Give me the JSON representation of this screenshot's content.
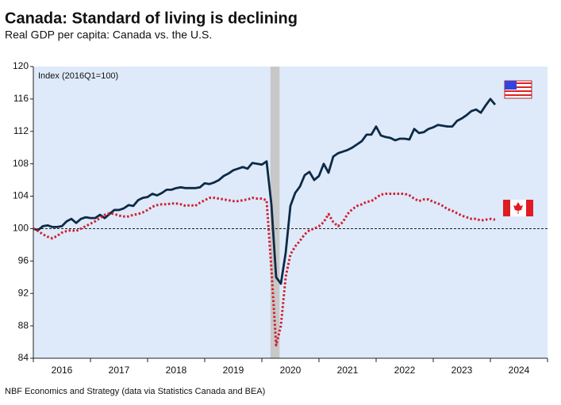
{
  "chart_data": {
    "type": "line",
    "title": "Canada: Standard of living is declining",
    "subtitle": "Real GDP per capita: Canada vs. the U.S.",
    "annotation": "Index (2016Q1=100)",
    "source": "NBF Economics and Strategy (data via Statistics Canada and BEA)",
    "x": [
      2016,
      2016.083,
      2016.167,
      2016.25,
      2016.333,
      2016.417,
      2016.5,
      2016.583,
      2016.667,
      2016.75,
      2016.833,
      2016.917,
      2017,
      2017.083,
      2017.167,
      2017.25,
      2017.333,
      2017.417,
      2017.5,
      2017.583,
      2017.667,
      2017.75,
      2017.833,
      2017.917,
      2018,
      2018.083,
      2018.167,
      2018.25,
      2018.333,
      2018.417,
      2018.5,
      2018.583,
      2018.667,
      2018.75,
      2018.833,
      2018.917,
      2019,
      2019.083,
      2019.167,
      2019.25,
      2019.333,
      2019.417,
      2019.5,
      2019.583,
      2019.667,
      2019.75,
      2019.833,
      2019.917,
      2020,
      2020.083,
      2020.167,
      2020.25,
      2020.333,
      2020.417,
      2020.5,
      2020.583,
      2020.667,
      2020.75,
      2020.833,
      2020.917,
      2021,
      2021.083,
      2021.167,
      2021.25,
      2021.333,
      2021.417,
      2021.5,
      2021.583,
      2021.667,
      2021.75,
      2021.833,
      2021.917,
      2022,
      2022.083,
      2022.167,
      2022.25,
      2022.333,
      2022.417,
      2022.5,
      2022.583,
      2022.667,
      2022.75,
      2022.833,
      2022.917,
      2023,
      2023.083,
      2023.167,
      2023.25,
      2023.333,
      2023.417,
      2023.5,
      2023.583,
      2023.667,
      2023.75,
      2023.833,
      2023.917,
      2024,
      2024.083
    ],
    "series": [
      {
        "color": "#0d2a45",
        "style": "solid",
        "values": [
          100,
          99.8,
          100.3,
          100.4,
          100.2,
          100.2,
          100.3,
          100.9,
          101.2,
          100.7,
          101.2,
          101.4,
          101.3,
          101.3,
          101.7,
          101.3,
          101.8,
          102.3,
          102.3,
          102.5,
          102.9,
          102.8,
          103.5,
          103.8,
          103.9,
          104.3,
          104.1,
          104.4,
          104.8,
          104.8,
          105.0,
          105.1,
          105.0,
          105.0,
          105.0,
          105.1,
          105.6,
          105.5,
          105.7,
          106.0,
          106.5,
          106.8,
          107.2,
          107.4,
          107.6,
          107.4,
          108.1,
          108.0,
          107.9,
          108.3,
          103,
          94,
          93.2,
          97,
          102.8,
          104.4,
          105.2,
          106.6,
          107.0,
          106.0,
          106.5,
          108.0,
          106.9,
          108.9,
          109.3,
          109.5,
          109.7,
          110.0,
          110.4,
          110.8,
          111.6,
          111.6,
          112.6,
          111.5,
          111.3,
          111.2,
          110.9,
          111.1,
          111.1,
          111.0,
          112.3,
          111.8,
          111.9,
          112.3,
          112.5,
          112.8,
          112.7,
          112.6,
          112.6,
          113.3,
          113.6,
          114.0,
          114.5,
          114.7,
          114.3,
          115.2,
          116.0,
          115.3
        ]
      },
      {
        "color": "#d1202f",
        "style": "dotted",
        "values": [
          100,
          99.7,
          99.3,
          99.0,
          98.8,
          99.1,
          99.5,
          99.7,
          99.8,
          99.7,
          100.0,
          100.3,
          100.6,
          100.9,
          101.3,
          101.7,
          101.9,
          101.8,
          101.6,
          101.5,
          101.5,
          101.7,
          101.8,
          102.0,
          102.3,
          102.7,
          102.9,
          103.0,
          103.0,
          103.1,
          103.1,
          103.0,
          102.8,
          102.9,
          102.8,
          103.2,
          103.5,
          103.8,
          103.8,
          103.7,
          103.6,
          103.5,
          103.4,
          103.4,
          103.5,
          103.6,
          103.8,
          103.7,
          103.7,
          103.5,
          95,
          85.6,
          88,
          94,
          96.8,
          97.8,
          98.5,
          99.3,
          99.8,
          100.0,
          100.3,
          100.8,
          101.8,
          100.8,
          100.3,
          100.8,
          101.8,
          102.4,
          102.8,
          103.0,
          103.3,
          103.4,
          103.8,
          104.2,
          104.3,
          104.3,
          104.3,
          104.3,
          104.3,
          104.1,
          103.7,
          103.4,
          103.6,
          103.6,
          103.3,
          103.1,
          102.8,
          102.4,
          102.2,
          101.9,
          101.6,
          101.4,
          101.2,
          101.2,
          101.0,
          101.1,
          101.2,
          101.1
        ]
      }
    ],
    "reference_line": 100,
    "shade": [
      2020.15,
      2020.31
    ],
    "xlim": [
      2016,
      2025
    ],
    "xtick_marks": [
      2016,
      2017,
      2018,
      2019,
      2020,
      2021,
      2022,
      2023,
      2024,
      2025
    ],
    "xticks": [
      {
        "value": 2016.5,
        "label": "2016"
      },
      {
        "value": 2017.5,
        "label": "2017"
      },
      {
        "value": 2018.5,
        "label": "2018"
      },
      {
        "value": 2019.5,
        "label": "2019"
      },
      {
        "value": 2020.5,
        "label": "2020"
      },
      {
        "value": 2021.5,
        "label": "2021"
      },
      {
        "value": 2022.5,
        "label": "2022"
      },
      {
        "value": 2023.5,
        "label": "2023"
      },
      {
        "value": 2024.5,
        "label": "2024"
      }
    ],
    "ylim": [
      84,
      120
    ],
    "yticks": [
      84,
      88,
      92,
      96,
      100,
      104,
      108,
      112,
      116,
      120
    ]
  }
}
